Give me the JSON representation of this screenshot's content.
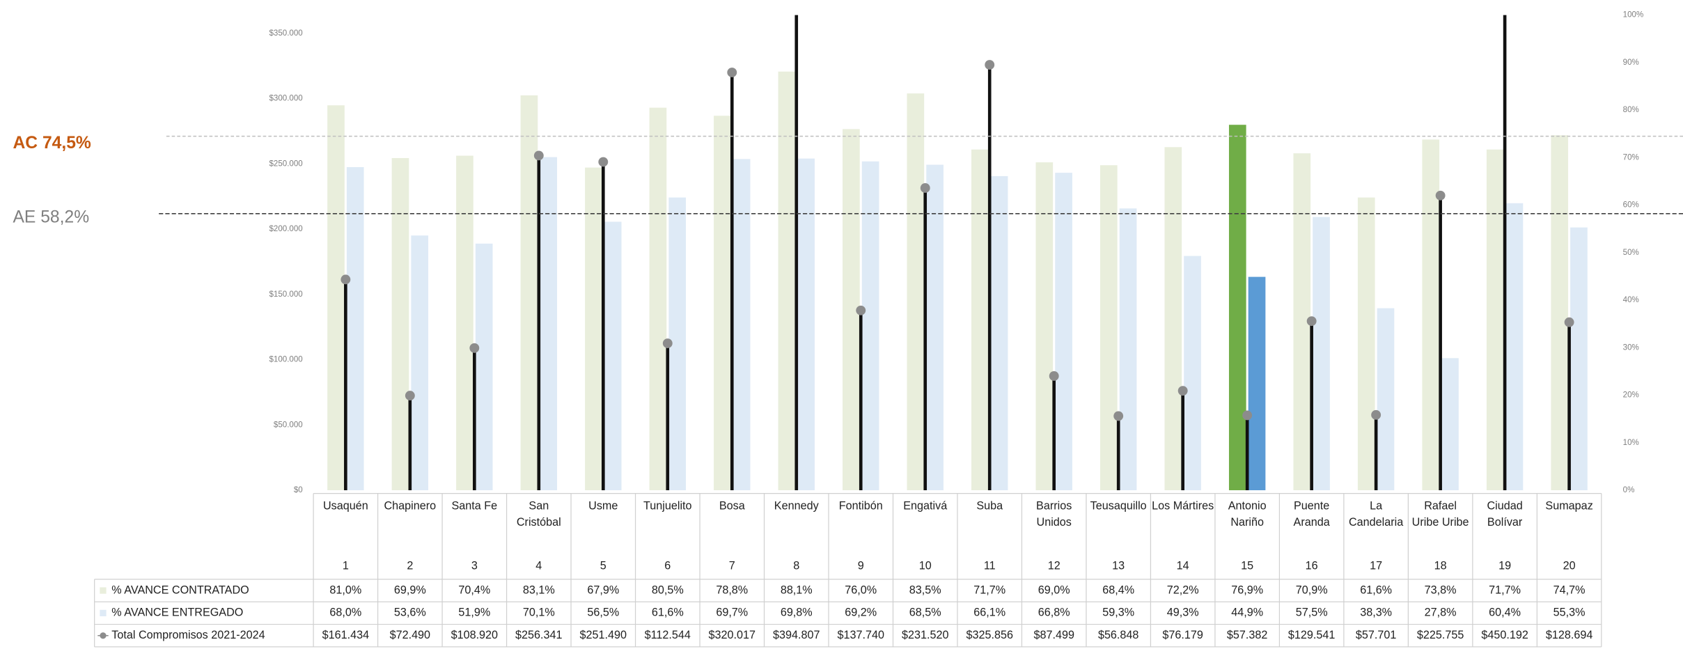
{
  "chart_data": {
    "type": "bar",
    "categories": [
      "Usaquén",
      "Chapinero",
      "Santa Fe",
      "San Cristóbal",
      "Usme",
      "Tunjuelito",
      "Bosa",
      "Kennedy",
      "Fontibón",
      "Engativá",
      "Suba",
      "Barrios Unidos",
      "Teusaquillo",
      "Los Mártires",
      "Antonio Nariño",
      "Puente Aranda",
      "La Candelaria",
      "Rafael Uribe Uribe",
      "Ciudad Bolívar",
      "Sumapaz"
    ],
    "numbers": [
      1,
      2,
      3,
      4,
      5,
      6,
      7,
      8,
      9,
      10,
      11,
      12,
      13,
      14,
      15,
      16,
      17,
      18,
      19,
      20
    ],
    "series": [
      {
        "name": "% AVANCE CONTRATADO",
        "type": "bar",
        "axis": "y2",
        "color": "#e9eedc",
        "colors": [
          "#e9eedc",
          "#e9eedc",
          "#e9eedc",
          "#e9eedc",
          "#e9eedc",
          "#e9eedc",
          "#e9eedc",
          "#e9eedc",
          "#e9eedc",
          "#e9eedc",
          "#e9eedc",
          "#e9eedc",
          "#e9eedc",
          "#e9eedc",
          "#70ad47",
          "#e9eedc",
          "#e9eedc",
          "#e9eedc",
          "#e9eedc",
          "#e9eedc"
        ],
        "values": [
          81.0,
          69.9,
          70.4,
          83.1,
          67.9,
          80.5,
          78.8,
          88.1,
          76.0,
          83.5,
          71.7,
          69.0,
          68.4,
          72.2,
          76.9,
          70.9,
          61.6,
          73.8,
          71.7,
          74.7
        ],
        "value_labels": [
          "81,0%",
          "69,9%",
          "70,4%",
          "83,1%",
          "67,9%",
          "80,5%",
          "78,8%",
          "88,1%",
          "76,0%",
          "83,5%",
          "71,7%",
          "69,0%",
          "68,4%",
          "72,2%",
          "76,9%",
          "70,9%",
          "61,6%",
          "73,8%",
          "71,7%",
          "74,7%"
        ]
      },
      {
        "name": "% AVANCE ENTREGADO",
        "type": "bar",
        "axis": "y2",
        "color": "#deeaf6",
        "colors": [
          "#deeaf6",
          "#deeaf6",
          "#deeaf6",
          "#deeaf6",
          "#deeaf6",
          "#deeaf6",
          "#deeaf6",
          "#deeaf6",
          "#deeaf6",
          "#deeaf6",
          "#deeaf6",
          "#deeaf6",
          "#deeaf6",
          "#deeaf6",
          "#5b9bd5",
          "#deeaf6",
          "#deeaf6",
          "#deeaf6",
          "#deeaf6",
          "#deeaf6"
        ],
        "values": [
          68.0,
          53.6,
          51.9,
          70.1,
          56.5,
          61.6,
          69.7,
          69.8,
          69.2,
          68.5,
          66.1,
          66.8,
          59.3,
          49.3,
          44.9,
          57.5,
          38.3,
          27.8,
          60.4,
          55.3
        ],
        "value_labels": [
          "68,0%",
          "53,6%",
          "51,9%",
          "70,1%",
          "56,5%",
          "61,6%",
          "69,7%",
          "69,8%",
          "69,2%",
          "68,5%",
          "66,1%",
          "66,8%",
          "59,3%",
          "49,3%",
          "44,9%",
          "57,5%",
          "38,3%",
          "27,8%",
          "60,4%",
          "55,3%"
        ]
      },
      {
        "name": "Total Compromisos 2021-2024",
        "type": "lollipop",
        "axis": "y",
        "color": "#111111",
        "marker_color": "#8c8c8c",
        "values": [
          161434,
          72490,
          108920,
          256341,
          251490,
          112544,
          320017,
          394807,
          137740,
          231520,
          325856,
          87499,
          56848,
          76179,
          57382,
          129541,
          57701,
          225755,
          450192,
          128694
        ],
        "value_labels": [
          "$161.434",
          "$72.490",
          "$108.920",
          "$256.341",
          "$251.490",
          "$112.544",
          "$320.017",
          "$394.807",
          "$137.740",
          "$231.520",
          "$325.856",
          "$87.499",
          "$56.848",
          "$76.179",
          "$57.382",
          "$129.541",
          "$57.701",
          "$225.755",
          "$450.192",
          "$128.694"
        ]
      }
    ],
    "ylim": [
      0,
      364000
    ],
    "yticks": [
      {
        "value": 0,
        "label": "$0"
      },
      {
        "value": 50000,
        "label": "$50.000"
      },
      {
        "value": 100000,
        "label": "$100.000"
      },
      {
        "value": 150000,
        "label": "$150.000"
      },
      {
        "value": 200000,
        "label": "$200.000"
      },
      {
        "value": 250000,
        "label": "$250.000"
      },
      {
        "value": 300000,
        "label": "$300.000"
      },
      {
        "value": 350000,
        "label": "$350.000"
      }
    ],
    "y2lim": [
      0,
      100
    ],
    "y2ticks": [
      {
        "value": 0,
        "label": "0%"
      },
      {
        "value": 10,
        "label": "10%"
      },
      {
        "value": 20,
        "label": "20%"
      },
      {
        "value": 30,
        "label": "30%"
      },
      {
        "value": 40,
        "label": "40%"
      },
      {
        "value": 50,
        "label": "50%"
      },
      {
        "value": 60,
        "label": "60%"
      },
      {
        "value": 70,
        "label": "70%"
      },
      {
        "value": 80,
        "label": "80%"
      },
      {
        "value": 90,
        "label": "90%"
      },
      {
        "value": 100,
        "label": "100%"
      }
    ],
    "reference_lines": [
      {
        "label": "AC 74,5%",
        "value": 74.5,
        "axis": "y2",
        "color": "#c55a11"
      },
      {
        "label": "AE 58,2%",
        "value": 58.2,
        "axis": "y2",
        "color": "#7f7f7f"
      }
    ]
  }
}
